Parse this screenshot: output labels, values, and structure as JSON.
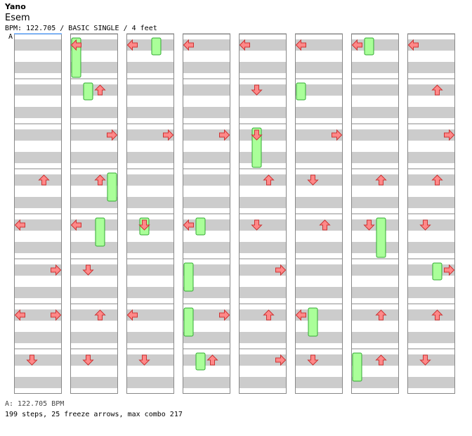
{
  "song": {
    "artist": "Yano",
    "title": "Esem",
    "info_line": "BPM: 122.705 / BASIC SINGLE / 4 feet",
    "bpm_marker": "A"
  },
  "footer": {
    "bpm_line": "A: 122.705 BPM",
    "stats_line": "199 steps, 25 freeze arrows, max combo 217"
  },
  "colors": {
    "quarter": "#ff8888",
    "eighth": "#66aaff",
    "freeze": "#aaff99",
    "stripe": "#cccccc",
    "border": "#888888"
  },
  "chart_data": {
    "type": "step-chart",
    "columns": 8,
    "measures_per_column": 8,
    "lanes": [
      "left",
      "down",
      "up",
      "right"
    ],
    "notes": [
      [
        1,
        3,
        "up",
        "q"
      ],
      [
        1,
        4,
        "left",
        "q"
      ],
      [
        1,
        5,
        "right",
        "q"
      ],
      [
        1,
        6,
        "left",
        "q"
      ],
      [
        1,
        6,
        "right",
        "q"
      ],
      [
        1,
        7,
        "down",
        "q"
      ],
      [
        2,
        0,
        "left",
        "q"
      ],
      [
        2,
        1,
        "up",
        "q"
      ],
      [
        2,
        2,
        "right",
        "q"
      ],
      [
        2,
        3,
        "up",
        "q"
      ],
      [
        2,
        4,
        "left",
        "q"
      ],
      [
        2,
        5,
        "down",
        "q"
      ],
      [
        2,
        6,
        "up",
        "q"
      ],
      [
        2,
        7,
        "down",
        "q"
      ],
      [
        3,
        0,
        "left",
        "q"
      ],
      [
        3,
        2,
        "right",
        "q"
      ],
      [
        3,
        4,
        "down",
        "q"
      ],
      [
        3,
        6,
        "left",
        "q"
      ],
      [
        3,
        7,
        "down",
        "q"
      ],
      [
        4,
        0,
        "left",
        "q"
      ],
      [
        4,
        2,
        "right",
        "q"
      ],
      [
        4,
        4,
        "left",
        "q"
      ],
      [
        4,
        6,
        "right",
        "q"
      ],
      [
        4,
        7,
        "up",
        "q"
      ],
      [
        5,
        0,
        "left",
        "q"
      ],
      [
        5,
        1,
        "down",
        "q"
      ],
      [
        5,
        2,
        "down",
        "q"
      ],
      [
        5,
        3,
        "up",
        "q"
      ],
      [
        5,
        4,
        "down",
        "q"
      ],
      [
        5,
        5,
        "right",
        "q"
      ],
      [
        5,
        6,
        "up",
        "q"
      ],
      [
        5,
        7,
        "right",
        "q"
      ],
      [
        6,
        0,
        "left",
        "q"
      ],
      [
        6,
        2,
        "right",
        "q"
      ],
      [
        6,
        3,
        "down",
        "q"
      ],
      [
        6,
        4,
        "up",
        "q"
      ],
      [
        6,
        6,
        "left",
        "q"
      ],
      [
        6,
        7,
        "down",
        "q"
      ],
      [
        7,
        0,
        "left",
        "q"
      ],
      [
        7,
        3,
        "up",
        "q"
      ],
      [
        7,
        4,
        "down",
        "q"
      ],
      [
        7,
        6,
        "up",
        "q"
      ],
      [
        7,
        7,
        "up",
        "q"
      ],
      [
        8,
        0,
        "left",
        "q"
      ],
      [
        8,
        1,
        "up",
        "q"
      ],
      [
        8,
        2,
        "right",
        "q"
      ],
      [
        8,
        3,
        "up",
        "q"
      ],
      [
        8,
        4,
        "down",
        "q"
      ],
      [
        8,
        5,
        "right",
        "q"
      ],
      [
        8,
        6,
        "up",
        "q"
      ],
      [
        8,
        7,
        "down",
        "q"
      ]
    ],
    "freezes": [
      [
        2,
        0,
        0,
        2
      ],
      [
        2,
        1,
        1,
        0
      ],
      [
        2,
        3,
        3,
        1
      ],
      [
        2,
        4,
        2,
        1
      ],
      [
        3,
        0,
        2,
        0
      ],
      [
        3,
        4,
        1,
        0
      ],
      [
        4,
        4,
        1,
        0
      ],
      [
        4,
        5,
        0,
        1
      ],
      [
        4,
        6,
        0,
        1
      ],
      [
        4,
        7,
        1,
        0
      ],
      [
        5,
        2,
        1,
        2
      ],
      [
        6,
        1,
        0,
        0
      ],
      [
        6,
        6,
        1,
        1
      ],
      [
        7,
        0,
        1,
        0
      ],
      [
        7,
        7,
        0,
        1
      ],
      [
        7,
        4,
        2,
        2
      ],
      [
        8,
        5,
        2,
        0
      ]
    ]
  }
}
